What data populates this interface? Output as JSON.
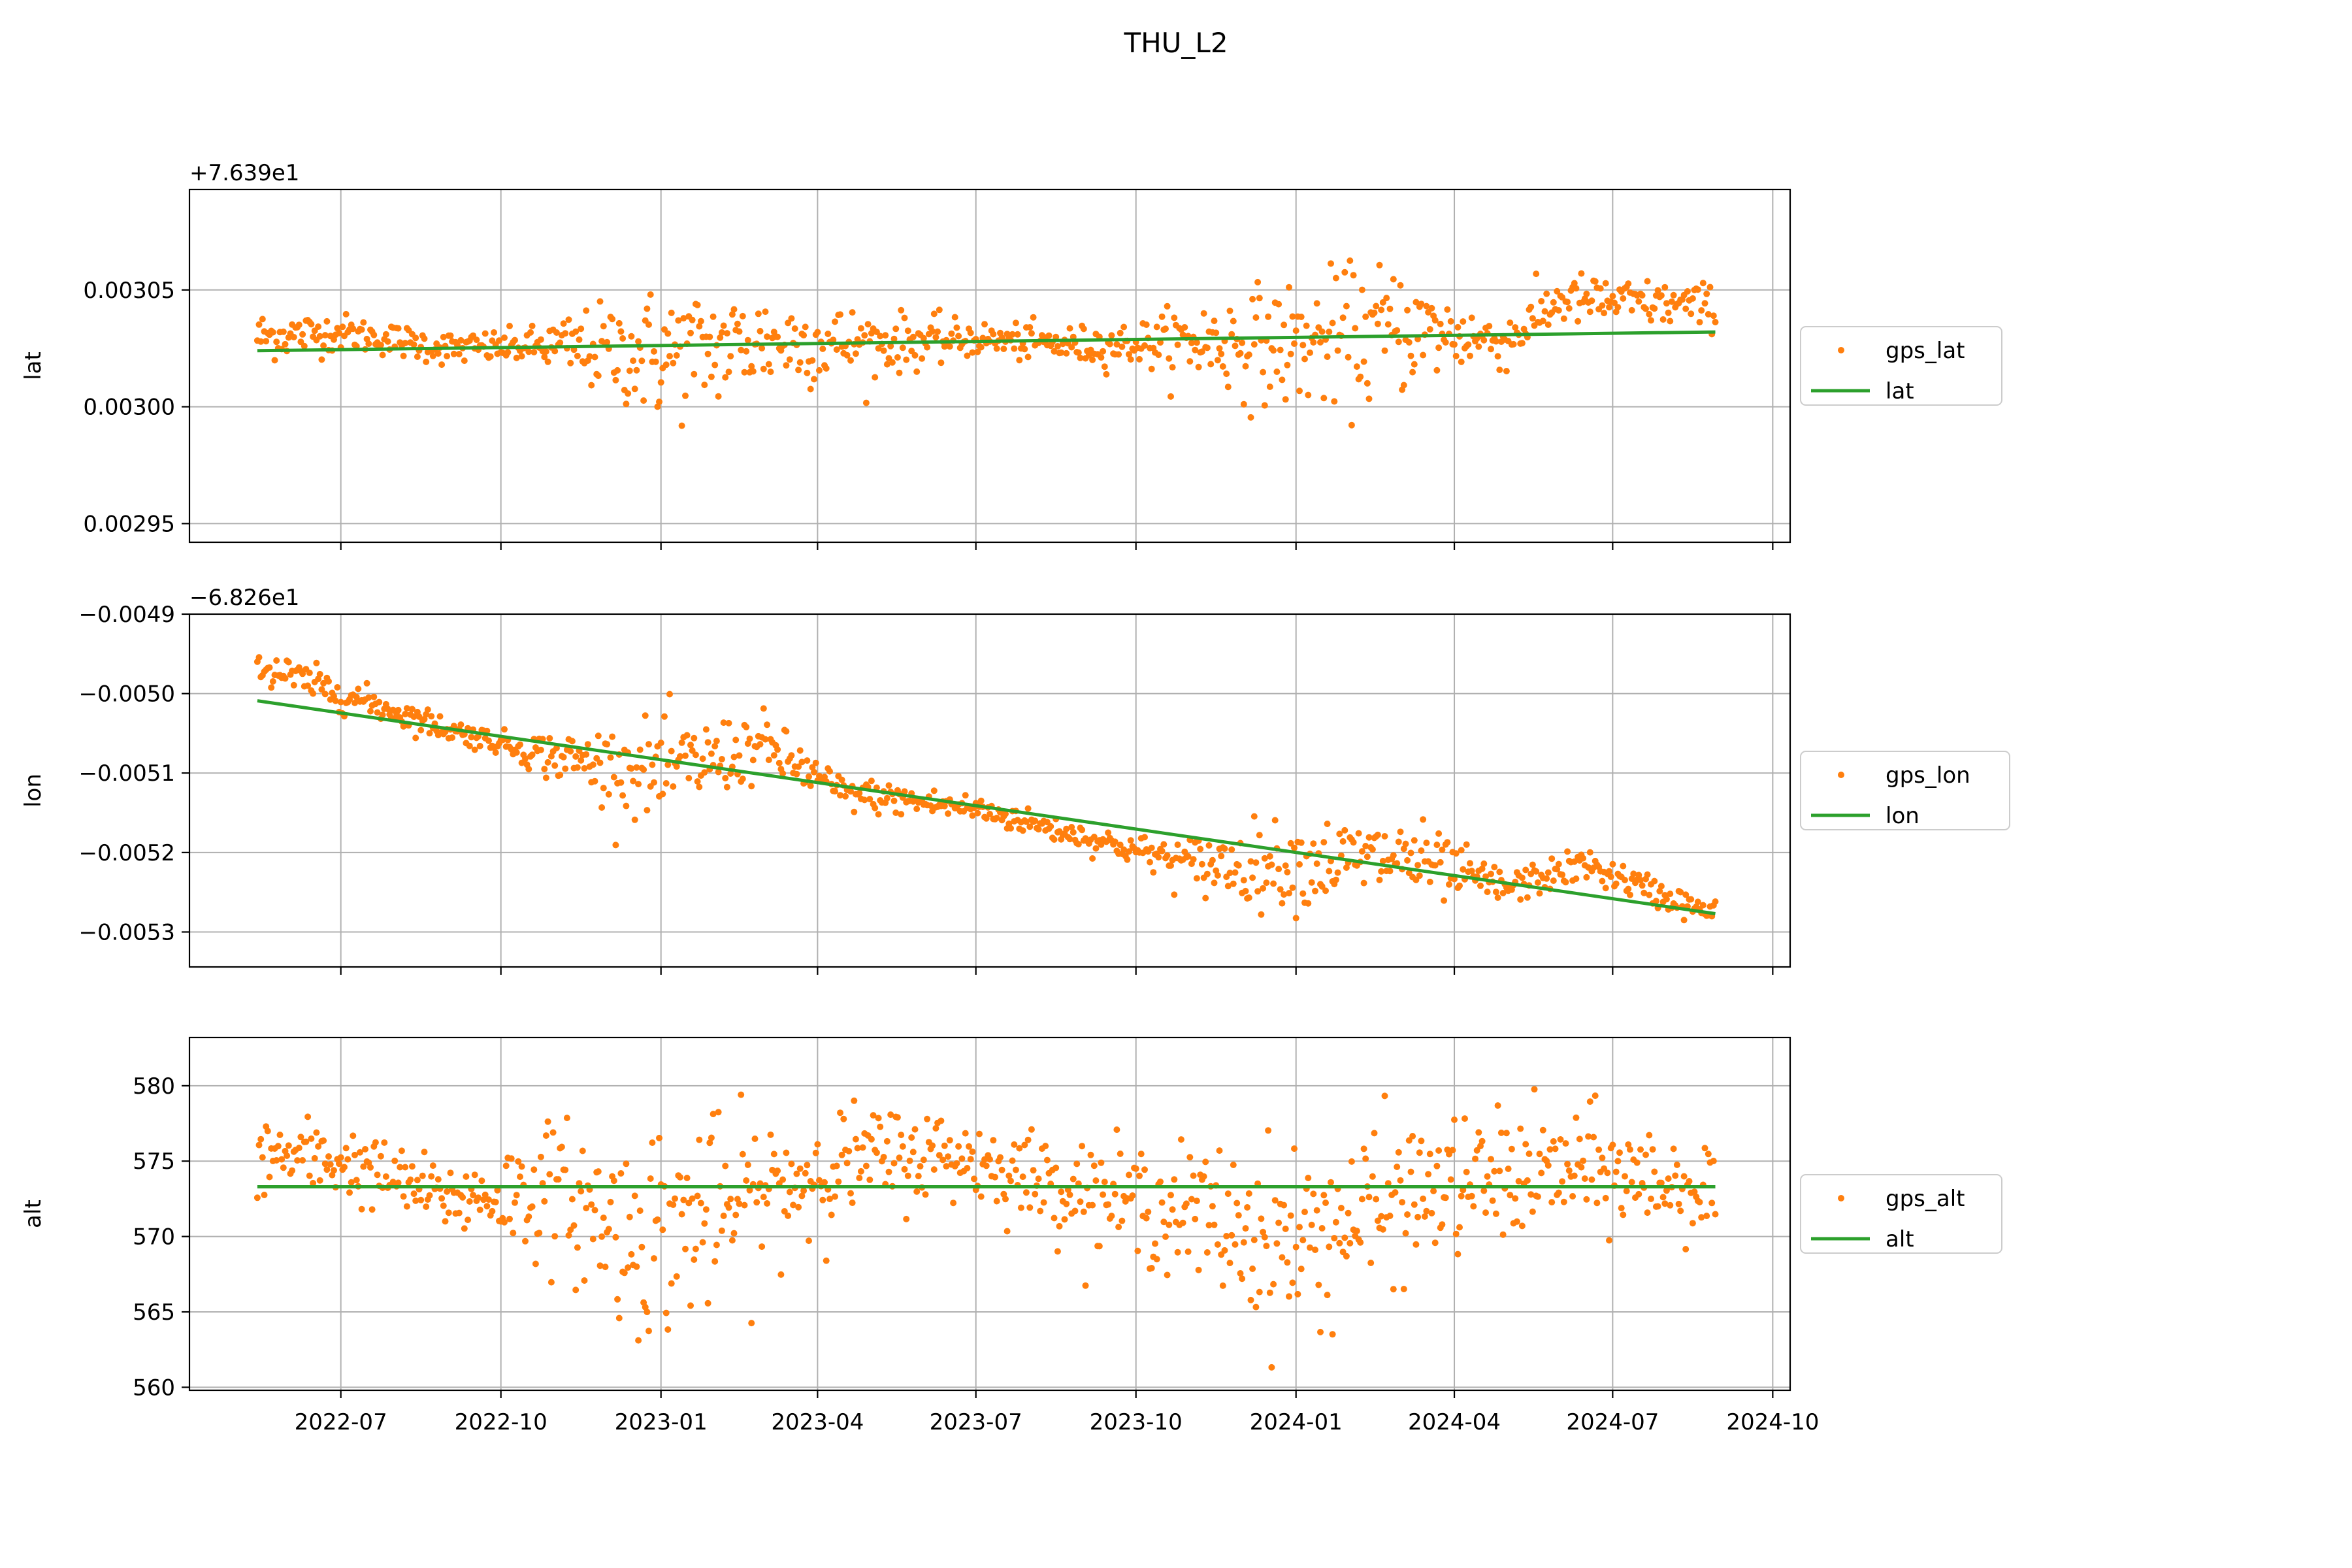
{
  "chart_data": {
    "type": "scatter",
    "title": "THU_L2",
    "x_type": "date",
    "x_range": [
      "2022-04-05",
      "2024-10-11"
    ],
    "x_ticks": [
      "2022-07",
      "2022-10",
      "2023-01",
      "2023-04",
      "2023-07",
      "2023-10",
      "2024-01",
      "2024-04",
      "2024-07",
      "2024-10"
    ],
    "grid": true,
    "legend_placement": "right-outside",
    "colors": {
      "points": "#ff7f0e",
      "line": "#2ca02c"
    },
    "panels": [
      {
        "ylabel": "lat",
        "offset_text": "+7.639e1",
        "ylim": [
          0.002942,
          0.003093
        ],
        "yticks": [
          0.00295,
          0.003,
          0.00305
        ],
        "ytick_labels": [
          "0.00295",
          "0.00300",
          "0.00305"
        ],
        "series": [
          {
            "name": "gps_lat",
            "kind": "scatter",
            "anchors": [
              [
                "2022-05-14",
                0.00303
              ],
              [
                "2022-07-01",
                0.003032
              ],
              [
                "2022-09-01",
                0.003025
              ],
              [
                "2022-11-01",
                0.003026
              ],
              [
                "2023-01-01",
                0.003022
              ],
              [
                "2023-03-01",
                0.003028
              ],
              [
                "2023-05-01",
                0.003027
              ],
              [
                "2023-07-01",
                0.003029
              ],
              [
                "2023-09-01",
                0.003026
              ],
              [
                "2023-11-01",
                0.003028
              ],
              [
                "2024-01-01",
                0.003026
              ],
              [
                "2024-03-01",
                0.003033
              ],
              [
                "2024-05-01",
                0.003028
              ],
              [
                "2024-06-01",
                0.003046
              ],
              [
                "2024-08-29",
                0.003043
              ]
            ],
            "spread": [
              [
                "2022-05-14",
                6e-06
              ],
              [
                "2022-07-15",
                4e-06
              ],
              [
                "2022-10-15",
                4e-06
              ],
              [
                "2023-01-01",
                1.6e-05
              ],
              [
                "2023-04-15",
                9e-06
              ],
              [
                "2023-07-01",
                4e-06
              ],
              [
                "2023-10-01",
                5e-06
              ],
              [
                "2023-12-01",
                1.3e-05
              ],
              [
                "2024-02-15",
                1.7e-05
              ],
              [
                "2024-04-15",
                7e-06
              ],
              [
                "2024-06-15",
                6e-06
              ],
              [
                "2024-08-29",
                5e-06
              ]
            ]
          },
          {
            "name": "lat",
            "kind": "line",
            "x": [
              "2022-05-14",
              "2024-08-29"
            ],
            "y": [
              0.003024,
              0.003032
            ]
          }
        ]
      },
      {
        "ylabel": "lon",
        "offset_text": "−6.826e1",
        "ylim": [
          -0.005344,
          -0.0049
        ],
        "yticks": [
          -0.0049,
          -0.005,
          -0.0051,
          -0.0052,
          -0.0053
        ],
        "ytick_labels": [
          "−0.0049",
          "−0.0050",
          "−0.0051",
          "−0.0052",
          "−0.0053"
        ],
        "series": [
          {
            "name": "gps_lon",
            "kind": "scatter",
            "anchors": [
              [
                "2022-05-14",
                -0.004965
              ],
              [
                "2022-07-01",
                -0.005
              ],
              [
                "2022-09-01",
                -0.005045
              ],
              [
                "2022-11-01",
                -0.00508
              ],
              [
                "2023-01-01",
                -0.0051
              ],
              [
                "2023-03-01",
                -0.005065
              ],
              [
                "2023-04-15",
                -0.005125
              ],
              [
                "2023-07-01",
                -0.005145
              ],
              [
                "2023-09-01",
                -0.00518
              ],
              [
                "2023-11-01",
                -0.005215
              ],
              [
                "2024-01-01",
                -0.005215
              ],
              [
                "2024-03-01",
                -0.005205
              ],
              [
                "2024-05-01",
                -0.005245
              ],
              [
                "2024-06-15",
                -0.005215
              ],
              [
                "2024-08-29",
                -0.00528
              ]
            ],
            "spread": [
              [
                "2022-05-14",
                1.5e-05
              ],
              [
                "2022-08-01",
                1e-05
              ],
              [
                "2022-10-01",
                8e-06
              ],
              [
                "2023-01-01",
                3.5e-05
              ],
              [
                "2023-04-15",
                1.2e-05
              ],
              [
                "2023-08-01",
                9e-06
              ],
              [
                "2023-10-01",
                1e-05
              ],
              [
                "2023-12-01",
                2.8e-05
              ],
              [
                "2024-03-01",
                3e-05
              ],
              [
                "2024-05-01",
                1.2e-05
              ],
              [
                "2024-08-29",
                1e-05
              ]
            ]
          },
          {
            "name": "lon",
            "kind": "line",
            "x": [
              "2022-05-14",
              "2024-08-29"
            ],
            "y": [
              -0.005009,
              -0.005277
            ]
          }
        ]
      },
      {
        "ylabel": "alt",
        "offset_text": "",
        "ylim": [
          559.8,
          583.2
        ],
        "yticks": [
          560,
          565,
          570,
          575,
          580
        ],
        "ytick_labels": [
          "560",
          "565",
          "570",
          "575",
          "580"
        ],
        "series": [
          {
            "name": "gps_alt",
            "kind": "scatter",
            "anchors": [
              [
                "2022-05-14",
                575.5
              ],
              [
                "2022-07-01",
                575
              ],
              [
                "2022-09-01",
                572.5
              ],
              [
                "2022-11-01",
                573
              ],
              [
                "2022-12-15",
                570
              ],
              [
                "2023-02-15",
                572
              ],
              [
                "2023-04-15",
                575
              ],
              [
                "2023-06-15",
                575.5
              ],
              [
                "2023-09-01",
                573
              ],
              [
                "2023-11-01",
                571.5
              ],
              [
                "2024-01-01",
                569.5
              ],
              [
                "2024-03-01",
                572.5
              ],
              [
                "2024-05-01",
                574
              ],
              [
                "2024-06-15",
                574.5
              ],
              [
                "2024-08-29",
                573
              ]
            ],
            "spread": [
              [
                "2022-05-14",
                1.5
              ],
              [
                "2022-09-01",
                1.2
              ],
              [
                "2023-01-01",
                4
              ],
              [
                "2023-04-15",
                2
              ],
              [
                "2023-07-01",
                1.5
              ],
              [
                "2023-10-01",
                2
              ],
              [
                "2024-01-01",
                3.5
              ],
              [
                "2024-04-01",
                2.5
              ],
              [
                "2024-08-29",
                1.8
              ]
            ]
          },
          {
            "name": "alt",
            "kind": "line",
            "x": [
              "2022-05-14",
              "2024-08-29"
            ],
            "y": [
              573.3,
              573.3
            ]
          }
        ]
      }
    ]
  }
}
